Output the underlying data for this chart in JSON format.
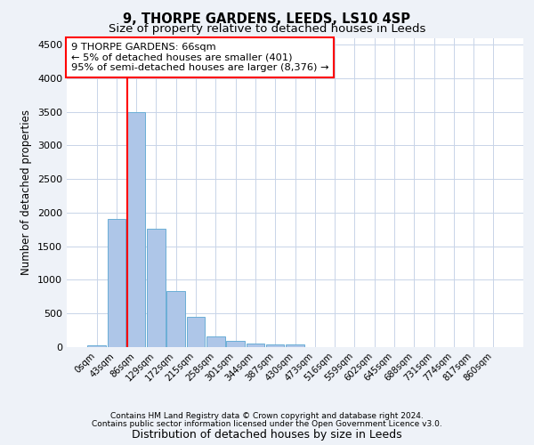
{
  "title1": "9, THORPE GARDENS, LEEDS, LS10 4SP",
  "title2": "Size of property relative to detached houses in Leeds",
  "xlabel": "Distribution of detached houses by size in Leeds",
  "ylabel": "Number of detached properties",
  "bar_labels": [
    "0sqm",
    "43sqm",
    "86sqm",
    "129sqm",
    "172sqm",
    "215sqm",
    "258sqm",
    "301sqm",
    "344sqm",
    "387sqm",
    "430sqm",
    "473sqm",
    "516sqm",
    "559sqm",
    "602sqm",
    "645sqm",
    "688sqm",
    "731sqm",
    "774sqm",
    "817sqm",
    "860sqm"
  ],
  "bar_values": [
    30,
    1900,
    3500,
    1760,
    830,
    445,
    165,
    95,
    55,
    35,
    45,
    0,
    0,
    0,
    0,
    0,
    0,
    0,
    0,
    0,
    0
  ],
  "bar_color": "#aec6e8",
  "bar_edge_color": "#6aaed6",
  "vline_color": "red",
  "ylim": [
    0,
    4600
  ],
  "yticks": [
    0,
    500,
    1000,
    1500,
    2000,
    2500,
    3000,
    3500,
    4000,
    4500
  ],
  "annotation_text": "9 THORPE GARDENS: 66sqm\n← 5% of detached houses are smaller (401)\n95% of semi-detached houses are larger (8,376) →",
  "annotation_box_color": "white",
  "annotation_box_edge": "red",
  "footer1": "Contains HM Land Registry data © Crown copyright and database right 2024.",
  "footer2": "Contains public sector information licensed under the Open Government Licence v3.0.",
  "bg_color": "#eef2f8",
  "plot_bg_color": "white",
  "grid_color": "#c8d4e8",
  "property_sqm": 66,
  "bin_width": 43
}
